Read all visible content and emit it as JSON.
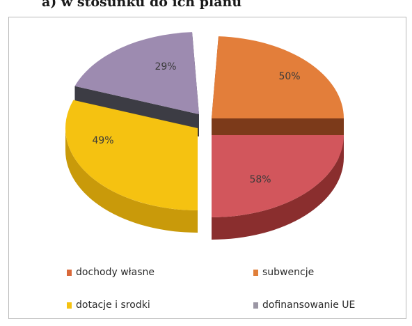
{
  "heading": "a)   w stosunku do ich planu",
  "chart_data": {
    "type": "pie",
    "slices": [
      {
        "name": "subwencje",
        "label": "50%",
        "value": 50,
        "color": "#e37e3a",
        "side": "#7c3a1a"
      },
      {
        "name": "dochody własne",
        "label": "58%",
        "value": 58,
        "color": "#d2565c",
        "side": "#8a2e2e"
      },
      {
        "name": "dotacje i środki",
        "label": "49%",
        "value": 49,
        "color": "#f5c211",
        "side": "#c99a0a"
      },
      {
        "name": "dofinansowanie UE",
        "label": "29%",
        "value": 29,
        "color": "#9d8bb0",
        "side": "#3c3c44"
      }
    ]
  },
  "legend": [
    {
      "label": "dochody własne",
      "color": "#d9693a"
    },
    {
      "label": "subwencje",
      "color": "#e07f3a"
    },
    {
      "label": "dotacje i srodki",
      "color": "#f5c211"
    },
    {
      "label": "dofinansowanie UE",
      "color": "#9b96a4"
    }
  ]
}
